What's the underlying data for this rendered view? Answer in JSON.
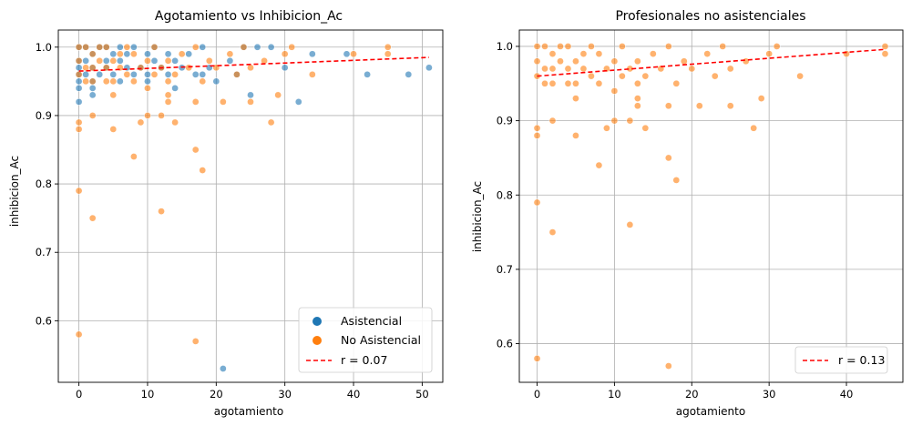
{
  "colors": {
    "asistencial": "#1f77b4",
    "no_asistencial": "#ff7f0e",
    "trend": "#ff0000"
  },
  "chart_data": [
    {
      "type": "scatter",
      "title": "Agotamiento vs Inhibicion_Ac",
      "xlabel": "agotamiento",
      "ylabel": "inhibicion_Ac",
      "xlim": [
        -3,
        53
      ],
      "ylim": [
        0.51,
        1.025
      ],
      "xticks": [
        "0",
        "10",
        "20",
        "30",
        "40",
        "50"
      ],
      "yticks": [
        "0.6",
        "0.7",
        "0.8",
        "0.9",
        "1.0"
      ],
      "grid": true,
      "legend_position": "lower-right",
      "series": [
        {
          "name": "Asistencial",
          "color_key": "asistencial",
          "points": [
            [
              0,
              0.96
            ],
            [
              0,
              0.95
            ],
            [
              0,
              0.94
            ],
            [
              0,
              0.92
            ],
            [
              0,
              0.97
            ],
            [
              0,
              0.98
            ],
            [
              0,
              1.0
            ],
            [
              1,
              0.96
            ],
            [
              1,
              0.98
            ],
            [
              1,
              1.0
            ],
            [
              2,
              0.95
            ],
            [
              2,
              0.94
            ],
            [
              2,
              0.93
            ],
            [
              2,
              0.97
            ],
            [
              2,
              0.99
            ],
            [
              3,
              0.96
            ],
            [
              3,
              1.0
            ],
            [
              4,
              0.97
            ],
            [
              4,
              0.98
            ],
            [
              4,
              1.0
            ],
            [
              5,
              0.96
            ],
            [
              5,
              0.99
            ],
            [
              6,
              0.95
            ],
            [
              6,
              0.98
            ],
            [
              6,
              1.0
            ],
            [
              7,
              0.97
            ],
            [
              7,
              0.99
            ],
            [
              8,
              0.96
            ],
            [
              8,
              1.0
            ],
            [
              9,
              0.97
            ],
            [
              10,
              0.95
            ],
            [
              10,
              0.96
            ],
            [
              10,
              0.99
            ],
            [
              11,
              0.98
            ],
            [
              11,
              1.0
            ],
            [
              12,
              0.97
            ],
            [
              13,
              0.96
            ],
            [
              13,
              0.99
            ],
            [
              14,
              0.94
            ],
            [
              14,
              0.98
            ],
            [
              15,
              0.97
            ],
            [
              16,
              0.99
            ],
            [
              17,
              0.96
            ],
            [
              18,
              0.96
            ],
            [
              18,
              1.0
            ],
            [
              19,
              0.97
            ],
            [
              20,
              0.95
            ],
            [
              21,
              0.53
            ],
            [
              22,
              0.98
            ],
            [
              23,
              0.96
            ],
            [
              24,
              1.0
            ],
            [
              25,
              0.93
            ],
            [
              26,
              1.0
            ],
            [
              28,
              1.0
            ],
            [
              30,
              0.97
            ],
            [
              32,
              0.92
            ],
            [
              34,
              0.99
            ],
            [
              39,
              0.99
            ],
            [
              42,
              0.96
            ],
            [
              48,
              0.96
            ],
            [
              51,
              0.97
            ]
          ]
        },
        {
          "name": "No Asistencial",
          "color_key": "no_asistencial",
          "points": [
            [
              0,
              0.58
            ],
            [
              0,
              0.79
            ],
            [
              0,
              0.88
            ],
            [
              0,
              0.89
            ],
            [
              0,
              0.96
            ],
            [
              0,
              0.98
            ],
            [
              0,
              1.0
            ],
            [
              1,
              0.95
            ],
            [
              1,
              0.97
            ],
            [
              1,
              1.0
            ],
            [
              2,
              0.75
            ],
            [
              2,
              0.9
            ],
            [
              2,
              0.95
            ],
            [
              2,
              0.97
            ],
            [
              2,
              0.99
            ],
            [
              3,
              0.98
            ],
            [
              3,
              1.0
            ],
            [
              4,
              0.95
            ],
            [
              4,
              0.97
            ],
            [
              4,
              1.0
            ],
            [
              5,
              0.88
            ],
            [
              5,
              0.93
            ],
            [
              5,
              0.95
            ],
            [
              5,
              0.98
            ],
            [
              6,
              0.97
            ],
            [
              6,
              0.99
            ],
            [
              7,
              0.96
            ],
            [
              7,
              1.0
            ],
            [
              8,
              0.84
            ],
            [
              8,
              0.95
            ],
            [
              8,
              0.99
            ],
            [
              9,
              0.89
            ],
            [
              9,
              0.97
            ],
            [
              10,
              0.9
            ],
            [
              10,
              0.94
            ],
            [
              10,
              0.98
            ],
            [
              11,
              0.96
            ],
            [
              11,
              1.0
            ],
            [
              12,
              0.76
            ],
            [
              12,
              0.9
            ],
            [
              12,
              0.97
            ],
            [
              13,
              0.92
            ],
            [
              13,
              0.93
            ],
            [
              13,
              0.95
            ],
            [
              13,
              0.98
            ],
            [
              14,
              0.89
            ],
            [
              14,
              0.96
            ],
            [
              15,
              0.99
            ],
            [
              16,
              0.97
            ],
            [
              17,
              0.57
            ],
            [
              17,
              0.85
            ],
            [
              17,
              0.92
            ],
            [
              17,
              1.0
            ],
            [
              18,
              0.82
            ],
            [
              18,
              0.95
            ],
            [
              19,
              0.98
            ],
            [
              20,
              0.97
            ],
            [
              21,
              0.92
            ],
            [
              22,
              0.99
            ],
            [
              23,
              0.96
            ],
            [
              24,
              1.0
            ],
            [
              25,
              0.92
            ],
            [
              25,
              0.97
            ],
            [
              27,
              0.98
            ],
            [
              28,
              0.89
            ],
            [
              29,
              0.93
            ],
            [
              30,
              0.99
            ],
            [
              31,
              1.0
            ],
            [
              34,
              0.96
            ],
            [
              40,
              0.99
            ],
            [
              45,
              0.99
            ],
            [
              45,
              1.0
            ]
          ]
        }
      ],
      "trend": {
        "label": "r = 0.07",
        "x": [
          0,
          51
        ],
        "y": [
          0.965,
          0.985
        ]
      }
    },
    {
      "type": "scatter",
      "title": "Profesionales no asistenciales",
      "xlabel": "agotamiento",
      "ylabel": "inhibicion_Ac",
      "xlim": [
        -2.3,
        47.3
      ],
      "ylim": [
        0.548,
        1.022
      ],
      "xticks": [
        "0",
        "10",
        "20",
        "30",
        "40"
      ],
      "yticks": [
        "0.6",
        "0.7",
        "0.8",
        "0.9",
        "1.0"
      ],
      "grid": true,
      "legend_position": "lower-right",
      "series": [
        {
          "name": "",
          "color_key": "no_asistencial",
          "points": [
            [
              0,
              0.58
            ],
            [
              0,
              0.79
            ],
            [
              0,
              0.88
            ],
            [
              0,
              0.89
            ],
            [
              0,
              0.96
            ],
            [
              0,
              0.98
            ],
            [
              0,
              1.0
            ],
            [
              1,
              0.95
            ],
            [
              1,
              0.97
            ],
            [
              1,
              1.0
            ],
            [
              2,
              0.75
            ],
            [
              2,
              0.9
            ],
            [
              2,
              0.95
            ],
            [
              2,
              0.97
            ],
            [
              2,
              0.99
            ],
            [
              3,
              0.98
            ],
            [
              3,
              1.0
            ],
            [
              4,
              0.95
            ],
            [
              4,
              0.97
            ],
            [
              4,
              1.0
            ],
            [
              5,
              0.88
            ],
            [
              5,
              0.93
            ],
            [
              5,
              0.95
            ],
            [
              5,
              0.98
            ],
            [
              6,
              0.97
            ],
            [
              6,
              0.99
            ],
            [
              7,
              0.96
            ],
            [
              7,
              1.0
            ],
            [
              8,
              0.84
            ],
            [
              8,
              0.95
            ],
            [
              8,
              0.99
            ],
            [
              9,
              0.89
            ],
            [
              9,
              0.97
            ],
            [
              10,
              0.9
            ],
            [
              10,
              0.94
            ],
            [
              10,
              0.98
            ],
            [
              11,
              0.96
            ],
            [
              11,
              1.0
            ],
            [
              12,
              0.76
            ],
            [
              12,
              0.9
            ],
            [
              12,
              0.97
            ],
            [
              13,
              0.92
            ],
            [
              13,
              0.93
            ],
            [
              13,
              0.95
            ],
            [
              13,
              0.98
            ],
            [
              14,
              0.89
            ],
            [
              14,
              0.96
            ],
            [
              15,
              0.99
            ],
            [
              16,
              0.97
            ],
            [
              17,
              0.57
            ],
            [
              17,
              0.85
            ],
            [
              17,
              0.92
            ],
            [
              17,
              1.0
            ],
            [
              18,
              0.82
            ],
            [
              18,
              0.95
            ],
            [
              19,
              0.98
            ],
            [
              20,
              0.97
            ],
            [
              21,
              0.92
            ],
            [
              22,
              0.99
            ],
            [
              23,
              0.96
            ],
            [
              24,
              1.0
            ],
            [
              25,
              0.92
            ],
            [
              25,
              0.97
            ],
            [
              27,
              0.98
            ],
            [
              28,
              0.89
            ],
            [
              29,
              0.93
            ],
            [
              30,
              0.99
            ],
            [
              31,
              1.0
            ],
            [
              34,
              0.96
            ],
            [
              40,
              0.99
            ],
            [
              45,
              0.99
            ],
            [
              45,
              1.0
            ]
          ]
        }
      ],
      "trend": {
        "label": "r = 0.13",
        "x": [
          0,
          45
        ],
        "y": [
          0.96,
          0.996
        ]
      }
    }
  ]
}
